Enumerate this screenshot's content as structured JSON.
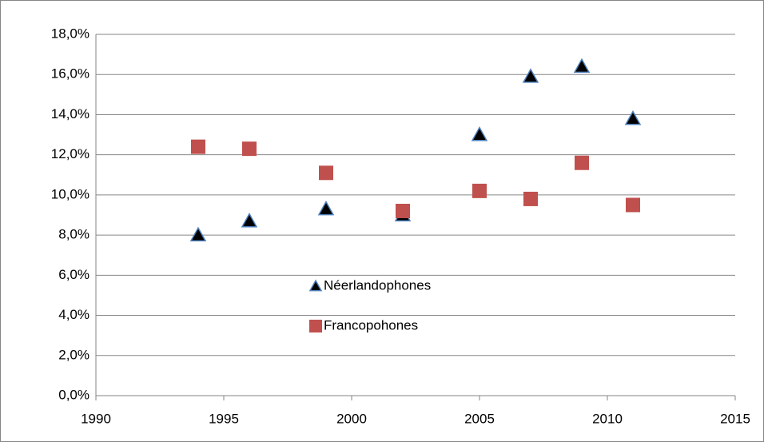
{
  "chart_data": {
    "type": "scatter",
    "series": [
      {
        "name": "Néerlandophones",
        "color": "#000000",
        "marker": "triangle",
        "x": [
          1994,
          1996,
          1999,
          2002,
          2005,
          2007,
          2009,
          2011
        ],
        "values": [
          8.0,
          8.7,
          9.3,
          9.0,
          13.0,
          15.9,
          16.4,
          13.8
        ]
      },
      {
        "name": "Francopohones",
        "color": "#c0504d",
        "marker": "square",
        "x": [
          1994,
          1996,
          1999,
          2002,
          2005,
          2007,
          2009,
          2011
        ],
        "values": [
          12.4,
          12.3,
          11.1,
          9.2,
          10.2,
          9.8,
          11.6,
          9.5
        ]
      }
    ],
    "xlim": [
      1990,
      2015
    ],
    "xticks": [
      1990,
      1995,
      2000,
      2005,
      2010,
      2015
    ],
    "ylim": [
      0,
      18
    ],
    "yticks": [
      {
        "value": 0,
        "label": "0,0%"
      },
      {
        "value": 2,
        "label": "2,0%"
      },
      {
        "value": 4,
        "label": "4,0%"
      },
      {
        "value": 6,
        "label": "6,0%"
      },
      {
        "value": 8,
        "label": "8,0%"
      },
      {
        "value": 10,
        "label": "10,0%"
      },
      {
        "value": 12,
        "label": "12,0%"
      },
      {
        "value": 14,
        "label": "14,0%"
      },
      {
        "value": 16,
        "label": "16,0%"
      },
      {
        "value": 18,
        "label": "18,0%"
      }
    ],
    "grid": true,
    "legend": "center"
  }
}
